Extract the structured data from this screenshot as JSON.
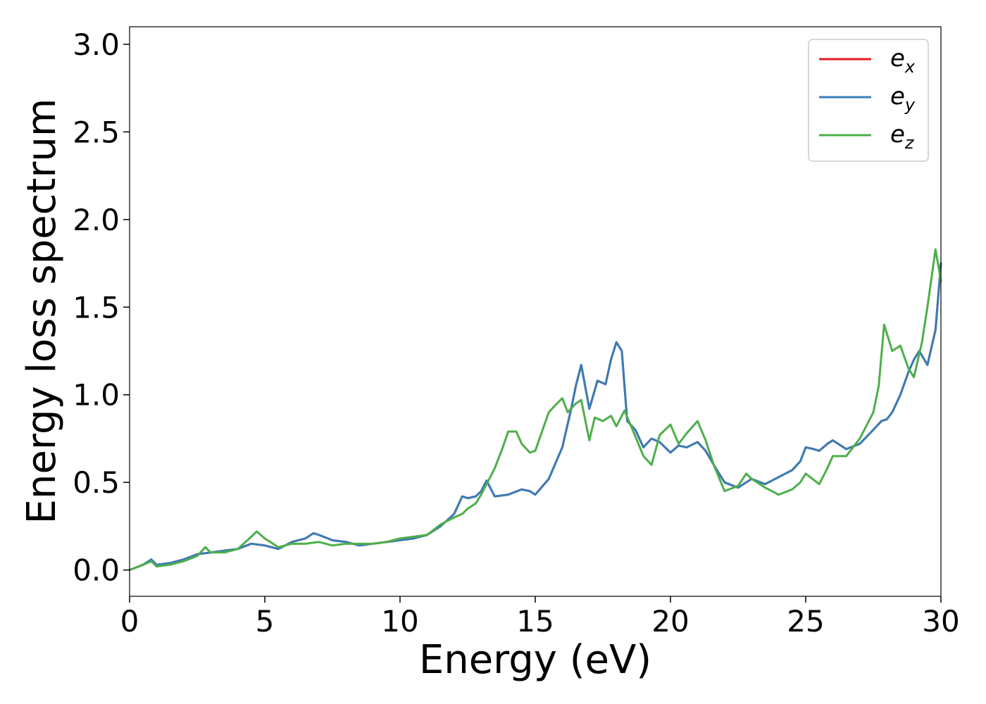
{
  "chart_data": {
    "type": "line",
    "xlabel": "Energy (eV)",
    "ylabel": "Energy loss spectrum",
    "xlim": [
      0,
      30
    ],
    "ylim": [
      -0.15,
      3.1
    ],
    "xticks": [
      0,
      5,
      10,
      15,
      20,
      25,
      30
    ],
    "yticks": [
      0.0,
      0.5,
      1.0,
      1.5,
      2.0,
      2.5,
      3.0
    ],
    "xtick_labels": [
      "0",
      "5",
      "10",
      "15",
      "20",
      "25",
      "30"
    ],
    "ytick_labels": [
      "0.0",
      "0.5",
      "1.0",
      "1.5",
      "2.0",
      "2.5",
      "3.0"
    ],
    "grid": false,
    "legend_position": "top-right",
    "series": [
      {
        "name": "e",
        "subscript": "x",
        "color": "#e41a1c",
        "x": [
          0,
          0.5,
          0.8,
          1.0,
          1.5,
          2.0,
          2.5,
          3.0,
          3.5,
          4.0,
          4.5,
          5.0,
          5.5,
          6.0,
          6.5,
          6.8,
          7.0,
          7.5,
          8.0,
          8.5,
          9.0,
          9.5,
          10.0,
          10.5,
          11.0,
          11.5,
          12.0,
          12.3,
          12.5,
          12.8,
          13.0,
          13.2,
          13.5,
          14.0,
          14.5,
          14.8,
          15.0,
          15.5,
          16.0,
          16.3,
          16.5,
          16.7,
          17.0,
          17.3,
          17.6,
          17.8,
          18.0,
          18.2,
          18.4,
          18.7,
          19.0,
          19.3,
          19.6,
          20.0,
          20.3,
          20.6,
          21.0,
          21.3,
          21.6,
          22.0,
          22.5,
          23.0,
          23.5,
          24.0,
          24.5,
          24.8,
          25.0,
          25.3,
          25.5,
          25.8,
          26.0,
          26.5,
          27.0,
          27.5,
          27.8,
          28.0,
          28.2,
          28.5,
          28.8,
          29.0,
          29.2,
          29.5,
          29.8,
          30.0
        ],
        "values": [
          0.0,
          0.03,
          0.06,
          0.03,
          0.04,
          0.06,
          0.09,
          0.1,
          0.11,
          0.12,
          0.15,
          0.14,
          0.12,
          0.16,
          0.18,
          0.21,
          0.2,
          0.17,
          0.16,
          0.14,
          0.15,
          0.16,
          0.17,
          0.18,
          0.2,
          0.25,
          0.32,
          0.42,
          0.41,
          0.42,
          0.45,
          0.51,
          0.42,
          0.43,
          0.46,
          0.45,
          0.43,
          0.52,
          0.7,
          0.9,
          1.05,
          1.17,
          0.92,
          1.08,
          1.06,
          1.2,
          1.3,
          1.25,
          0.85,
          0.8,
          0.7,
          0.75,
          0.73,
          0.67,
          0.71,
          0.7,
          0.73,
          0.68,
          0.6,
          0.5,
          0.47,
          0.52,
          0.49,
          0.53,
          0.57,
          0.62,
          0.7,
          0.69,
          0.68,
          0.72,
          0.74,
          0.69,
          0.72,
          0.8,
          0.85,
          0.86,
          0.9,
          1.0,
          1.13,
          1.2,
          1.25,
          1.17,
          1.37,
          1.75
        ]
      },
      {
        "name": "e",
        "subscript": "y",
        "color": "#377eb8",
        "x": [
          0,
          0.5,
          0.8,
          1.0,
          1.5,
          2.0,
          2.5,
          3.0,
          3.5,
          4.0,
          4.5,
          5.0,
          5.5,
          6.0,
          6.5,
          6.8,
          7.0,
          7.5,
          8.0,
          8.5,
          9.0,
          9.5,
          10.0,
          10.5,
          11.0,
          11.5,
          12.0,
          12.3,
          12.5,
          12.8,
          13.0,
          13.2,
          13.5,
          14.0,
          14.5,
          14.8,
          15.0,
          15.5,
          16.0,
          16.3,
          16.5,
          16.7,
          17.0,
          17.3,
          17.6,
          17.8,
          18.0,
          18.2,
          18.4,
          18.7,
          19.0,
          19.3,
          19.6,
          20.0,
          20.3,
          20.6,
          21.0,
          21.3,
          21.6,
          22.0,
          22.5,
          23.0,
          23.5,
          24.0,
          24.5,
          24.8,
          25.0,
          25.3,
          25.5,
          25.8,
          26.0,
          26.5,
          27.0,
          27.5,
          27.8,
          28.0,
          28.2,
          28.5,
          28.8,
          29.0,
          29.2,
          29.5,
          29.8,
          30.0
        ],
        "values": [
          0.0,
          0.03,
          0.06,
          0.03,
          0.04,
          0.06,
          0.09,
          0.1,
          0.11,
          0.12,
          0.15,
          0.14,
          0.12,
          0.16,
          0.18,
          0.21,
          0.2,
          0.17,
          0.16,
          0.14,
          0.15,
          0.16,
          0.17,
          0.18,
          0.2,
          0.25,
          0.32,
          0.42,
          0.41,
          0.42,
          0.45,
          0.51,
          0.42,
          0.43,
          0.46,
          0.45,
          0.43,
          0.52,
          0.7,
          0.9,
          1.05,
          1.17,
          0.92,
          1.08,
          1.06,
          1.2,
          1.3,
          1.25,
          0.85,
          0.8,
          0.7,
          0.75,
          0.73,
          0.67,
          0.71,
          0.7,
          0.73,
          0.68,
          0.6,
          0.5,
          0.47,
          0.52,
          0.49,
          0.53,
          0.57,
          0.62,
          0.7,
          0.69,
          0.68,
          0.72,
          0.74,
          0.69,
          0.72,
          0.8,
          0.85,
          0.86,
          0.9,
          1.0,
          1.13,
          1.2,
          1.25,
          1.17,
          1.37,
          1.75
        ]
      },
      {
        "name": "e",
        "subscript": "z",
        "color": "#4daf4a",
        "x": [
          0,
          0.5,
          0.8,
          1.0,
          1.5,
          2.0,
          2.5,
          2.8,
          3.0,
          3.5,
          4.0,
          4.5,
          4.7,
          5.0,
          5.5,
          6.0,
          6.5,
          7.0,
          7.5,
          8.0,
          8.5,
          9.0,
          9.5,
          10.0,
          10.5,
          11.0,
          11.5,
          12.0,
          12.3,
          12.5,
          12.8,
          13.0,
          13.5,
          13.8,
          14.0,
          14.3,
          14.5,
          14.8,
          15.0,
          15.5,
          15.8,
          16.0,
          16.2,
          16.5,
          16.7,
          17.0,
          17.2,
          17.5,
          17.8,
          18.0,
          18.3,
          18.6,
          19.0,
          19.3,
          19.6,
          20.0,
          20.3,
          20.6,
          21.0,
          21.3,
          21.6,
          22.0,
          22.5,
          22.8,
          23.0,
          23.5,
          24.0,
          24.5,
          24.8,
          25.0,
          25.5,
          25.8,
          26.0,
          26.5,
          27.0,
          27.5,
          27.7,
          27.9,
          28.2,
          28.5,
          28.8,
          29.0,
          29.3,
          29.5,
          29.8,
          30.0
        ],
        "values": [
          0.0,
          0.03,
          0.05,
          0.02,
          0.03,
          0.05,
          0.08,
          0.13,
          0.1,
          0.1,
          0.12,
          0.19,
          0.22,
          0.18,
          0.13,
          0.15,
          0.15,
          0.16,
          0.14,
          0.15,
          0.15,
          0.15,
          0.16,
          0.18,
          0.19,
          0.2,
          0.26,
          0.3,
          0.32,
          0.35,
          0.38,
          0.43,
          0.58,
          0.7,
          0.79,
          0.79,
          0.72,
          0.67,
          0.68,
          0.9,
          0.95,
          0.98,
          0.9,
          0.95,
          0.97,
          0.74,
          0.87,
          0.85,
          0.88,
          0.82,
          0.91,
          0.8,
          0.65,
          0.6,
          0.77,
          0.83,
          0.72,
          0.78,
          0.85,
          0.74,
          0.6,
          0.45,
          0.48,
          0.55,
          0.52,
          0.47,
          0.43,
          0.46,
          0.5,
          0.55,
          0.49,
          0.58,
          0.65,
          0.65,
          0.75,
          0.9,
          1.05,
          1.4,
          1.25,
          1.28,
          1.15,
          1.1,
          1.3,
          1.5,
          1.83,
          1.65
        ]
      }
    ]
  }
}
